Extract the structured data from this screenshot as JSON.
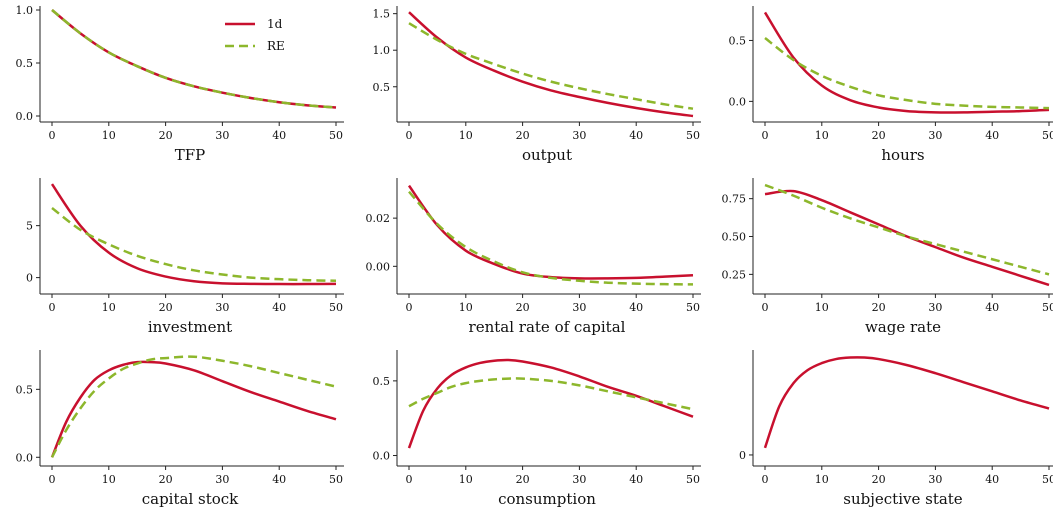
{
  "legend": [
    {
      "label": "1d",
      "color": "#c8102e",
      "style": "solid"
    },
    {
      "label": "RE",
      "color": "#8db72c",
      "style": "dashed"
    }
  ],
  "chart_data": [
    {
      "type": "line",
      "xlabel": "TFP",
      "xlim": [
        0,
        50
      ],
      "xticks": [
        0,
        10,
        20,
        30,
        40,
        50
      ],
      "ylim": [
        0,
        1.0
      ],
      "yticks": [
        0.0,
        0.5,
        1.0
      ],
      "ytick_labels": [
        "0.0",
        "0.5",
        "1.0"
      ],
      "x": [
        0,
        5,
        10,
        15,
        20,
        25,
        30,
        35,
        40,
        45,
        50
      ],
      "series": [
        {
          "name": "1d",
          "values": [
            1.0,
            0.78,
            0.6,
            0.47,
            0.36,
            0.28,
            0.22,
            0.17,
            0.13,
            0.1,
            0.08
          ]
        },
        {
          "name": "RE",
          "values": [
            1.0,
            0.78,
            0.6,
            0.47,
            0.36,
            0.28,
            0.22,
            0.17,
            0.13,
            0.1,
            0.08
          ]
        }
      ]
    },
    {
      "type": "line",
      "xlabel": "output",
      "xlim": [
        0,
        50
      ],
      "xticks": [
        0,
        10,
        20,
        30,
        40,
        50
      ],
      "ylim": [
        0.1,
        1.55
      ],
      "yticks": [
        0.5,
        1.0,
        1.5
      ],
      "ytick_labels": [
        "0.5",
        "1.0",
        "1.5"
      ],
      "x": [
        0,
        5,
        10,
        15,
        20,
        25,
        30,
        35,
        40,
        45,
        50
      ],
      "series": [
        {
          "name": "1d",
          "values": [
            1.52,
            1.17,
            0.9,
            0.72,
            0.57,
            0.45,
            0.36,
            0.28,
            0.21,
            0.15,
            0.1
          ]
        },
        {
          "name": "RE",
          "values": [
            1.37,
            1.14,
            0.95,
            0.81,
            0.68,
            0.57,
            0.48,
            0.4,
            0.33,
            0.26,
            0.2
          ]
        }
      ]
    },
    {
      "type": "line",
      "xlabel": "hours",
      "xlim": [
        0,
        50
      ],
      "xticks": [
        0,
        10,
        20,
        30,
        40,
        50
      ],
      "ylim": [
        -0.12,
        0.75
      ],
      "yticks": [
        0.0,
        0.5
      ],
      "ytick_labels": [
        "0.0",
        "0.5"
      ],
      "x": [
        0,
        5,
        10,
        15,
        20,
        25,
        30,
        35,
        40,
        45,
        50
      ],
      "series": [
        {
          "name": "1d",
          "values": [
            0.73,
            0.36,
            0.13,
            0.01,
            -0.05,
            -0.08,
            -0.09,
            -0.09,
            -0.085,
            -0.08,
            -0.07
          ]
        },
        {
          "name": "RE",
          "values": [
            0.52,
            0.34,
            0.21,
            0.12,
            0.05,
            0.01,
            -0.02,
            -0.035,
            -0.045,
            -0.05,
            -0.055
          ]
        }
      ]
    },
    {
      "type": "line",
      "xlabel": "investment",
      "xlim": [
        0,
        50
      ],
      "xticks": [
        0,
        10,
        20,
        30,
        40,
        50
      ],
      "ylim": [
        -1,
        9.2
      ],
      "yticks": [
        0,
        5
      ],
      "ytick_labels": [
        "0",
        "5"
      ],
      "x": [
        0,
        5,
        10,
        15,
        20,
        25,
        30,
        35,
        40,
        45,
        50
      ],
      "series": [
        {
          "name": "1d",
          "values": [
            9.0,
            5.0,
            2.4,
            0.9,
            0.1,
            -0.35,
            -0.55,
            -0.6,
            -0.62,
            -0.62,
            -0.6
          ]
        },
        {
          "name": "RE",
          "values": [
            6.7,
            4.6,
            3.2,
            2.1,
            1.3,
            0.7,
            0.3,
            0.0,
            -0.15,
            -0.25,
            -0.3
          ]
        }
      ]
    },
    {
      "type": "line",
      "xlabel": "rental rate of capital",
      "xlim": [
        0,
        50
      ],
      "xticks": [
        0,
        10,
        20,
        30,
        40,
        50
      ],
      "ylim": [
        -0.009,
        0.035
      ],
      "yticks": [
        0.0,
        0.02
      ],
      "ytick_labels": [
        "0.00",
        "0.02"
      ],
      "x": [
        0,
        5,
        10,
        15,
        20,
        25,
        30,
        35,
        40,
        45,
        50
      ],
      "series": [
        {
          "name": "1d",
          "values": [
            0.0335,
            0.017,
            0.0065,
            0.001,
            -0.003,
            -0.0045,
            -0.005,
            -0.005,
            -0.0048,
            -0.0043,
            -0.0037
          ]
        },
        {
          "name": "RE",
          "values": [
            0.031,
            0.0175,
            0.008,
            0.002,
            -0.0025,
            -0.0048,
            -0.006,
            -0.0068,
            -0.0072,
            -0.0074,
            -0.0075
          ]
        }
      ]
    },
    {
      "type": "line",
      "xlabel": "wage rate",
      "xlim": [
        0,
        50
      ],
      "xticks": [
        0,
        10,
        20,
        30,
        40,
        50
      ],
      "ylim": [
        0.16,
        0.86
      ],
      "yticks": [
        0.25,
        0.5,
        0.75
      ],
      "ytick_labels": [
        "0.25",
        "0.50",
        "0.75"
      ],
      "x": [
        0,
        5,
        10,
        15,
        20,
        25,
        30,
        35,
        40,
        45,
        50
      ],
      "series": [
        {
          "name": "1d",
          "values": [
            0.78,
            0.8,
            0.74,
            0.66,
            0.58,
            0.5,
            0.43,
            0.36,
            0.3,
            0.24,
            0.18
          ]
        },
        {
          "name": "RE",
          "values": [
            0.84,
            0.77,
            0.69,
            0.62,
            0.56,
            0.5,
            0.45,
            0.4,
            0.35,
            0.3,
            0.25
          ]
        }
      ]
    },
    {
      "type": "line",
      "xlabel": "capital stock",
      "xlim": [
        0,
        50
      ],
      "xticks": [
        0,
        10,
        20,
        30,
        40,
        50
      ],
      "ylim": [
        -0.02,
        0.76
      ],
      "yticks": [
        0.0,
        0.5
      ],
      "ytick_labels": [
        "0.0",
        "0.5"
      ],
      "x": [
        0,
        2.5,
        5,
        7.5,
        10,
        12.5,
        15,
        17.5,
        20,
        25,
        30,
        35,
        40,
        45,
        50
      ],
      "series": [
        {
          "name": "1d",
          "values": [
            0.0,
            0.26,
            0.44,
            0.57,
            0.64,
            0.68,
            0.7,
            0.7,
            0.69,
            0.64,
            0.56,
            0.48,
            0.41,
            0.34,
            0.28
          ]
        },
        {
          "name": "RE",
          "values": [
            0.0,
            0.2,
            0.36,
            0.49,
            0.58,
            0.65,
            0.69,
            0.72,
            0.73,
            0.74,
            0.71,
            0.67,
            0.62,
            0.57,
            0.52
          ]
        }
      ]
    },
    {
      "type": "line",
      "xlabel": "consumption",
      "xlim": [
        0,
        50
      ],
      "xticks": [
        0,
        10,
        20,
        30,
        40,
        50
      ],
      "ylim": [
        -0.03,
        0.68
      ],
      "yticks": [
        0.0,
        0.5
      ],
      "ytick_labels": [
        "0.0",
        "0.5"
      ],
      "x": [
        0,
        2.5,
        5,
        7.5,
        10,
        12.5,
        15,
        17.5,
        20,
        25,
        30,
        35,
        40,
        45,
        50
      ],
      "series": [
        {
          "name": "1d",
          "values": [
            0.05,
            0.3,
            0.45,
            0.54,
            0.59,
            0.62,
            0.635,
            0.64,
            0.63,
            0.59,
            0.53,
            0.46,
            0.4,
            0.33,
            0.26
          ]
        },
        {
          "name": "RE",
          "values": [
            0.33,
            0.38,
            0.42,
            0.46,
            0.485,
            0.5,
            0.51,
            0.515,
            0.515,
            0.5,
            0.47,
            0.43,
            0.39,
            0.35,
            0.31
          ]
        }
      ]
    },
    {
      "type": "line",
      "xlabel": "subjective state",
      "xlim": [
        0,
        50
      ],
      "xticks": [
        0,
        10,
        20,
        30,
        40,
        50
      ],
      "ylim": [
        -0.05,
        1.0
      ],
      "yticks": [
        0
      ],
      "ytick_labels": [
        "0"
      ],
      "x": [
        0,
        2.5,
        5,
        7.5,
        10,
        12.5,
        15,
        17.5,
        20,
        25,
        30,
        35,
        40,
        45,
        50
      ],
      "series": [
        {
          "name": "1d",
          "values": [
            0.07,
            0.48,
            0.71,
            0.84,
            0.91,
            0.95,
            0.965,
            0.965,
            0.95,
            0.89,
            0.81,
            0.72,
            0.63,
            0.54,
            0.46
          ]
        }
      ]
    }
  ]
}
